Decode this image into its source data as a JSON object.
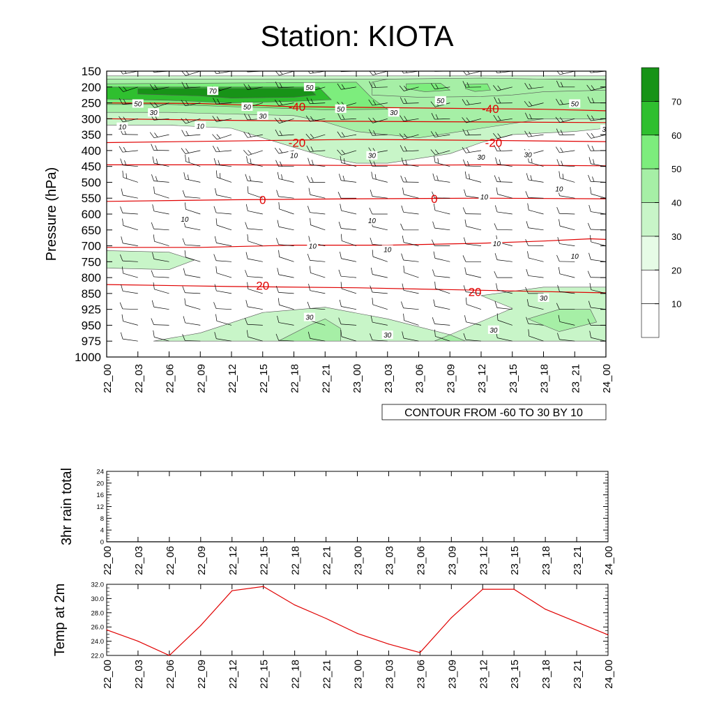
{
  "title": "Station: KIOTA",
  "time_labels": [
    "22_00",
    "22_03",
    "22_06",
    "22_09",
    "22_12",
    "22_15",
    "22_18",
    "22_21",
    "23_00",
    "23_03",
    "23_06",
    "23_09",
    "23_12",
    "23_15",
    "23_18",
    "23_21",
    "24_00"
  ],
  "chart_data": [
    {
      "type": "heatmap",
      "name": "time-height",
      "ylabel": "Pressure (hPa)",
      "y_ticks": [
        150,
        200,
        250,
        300,
        350,
        400,
        450,
        500,
        550,
        600,
        650,
        700,
        750,
        800,
        850,
        925,
        950,
        975,
        1000
      ],
      "note": "CONTOUR FROM -60 TO 30 BY 10",
      "colorbar": {
        "levels": [
          10,
          20,
          30,
          40,
          50,
          60,
          70
        ],
        "colors": [
          "#ffffff",
          "#ffffff",
          "#e6fbe6",
          "#c8f5c8",
          "#a6efa6",
          "#7ded7d",
          "#2fbf2f",
          "#179317"
        ]
      },
      "wind_speed_labels": [
        {
          "t": 3.4,
          "p": 212,
          "text": "70"
        },
        {
          "t": 6.5,
          "p": 200,
          "text": "50"
        },
        {
          "t": 1.0,
          "p": 252,
          "text": "50"
        },
        {
          "t": 4.5,
          "p": 262,
          "text": "50"
        },
        {
          "t": 7.5,
          "p": 268,
          "text": "50"
        },
        {
          "t": 1.5,
          "p": 280,
          "text": "30"
        },
        {
          "t": 5.0,
          "p": 290,
          "text": "30"
        },
        {
          "t": 9.2,
          "p": 280,
          "text": "30"
        },
        {
          "t": 10.7,
          "p": 242,
          "text": "50"
        },
        {
          "t": 15.0,
          "p": 252,
          "text": "50"
        },
        {
          "t": 16.0,
          "p": 332,
          "text": "30"
        },
        {
          "t": 0.5,
          "p": 325,
          "text": "10"
        },
        {
          "t": 3.0,
          "p": 322,
          "text": "10"
        },
        {
          "t": 6.0,
          "p": 415,
          "text": "10"
        },
        {
          "t": 8.5,
          "p": 415,
          "text": "30"
        },
        {
          "t": 12.0,
          "p": 420,
          "text": "30"
        },
        {
          "t": 13.5,
          "p": 412,
          "text": "30"
        },
        {
          "t": 14.5,
          "p": 520,
          "text": "10"
        },
        {
          "t": 12.1,
          "p": 545,
          "text": "10"
        },
        {
          "t": 2.5,
          "p": 615,
          "text": "10"
        },
        {
          "t": 8.5,
          "p": 620,
          "text": "10"
        },
        {
          "t": 6.6,
          "p": 700,
          "text": "10"
        },
        {
          "t": 9.0,
          "p": 711,
          "text": "10"
        },
        {
          "t": 12.5,
          "p": 692,
          "text": "10"
        },
        {
          "t": 15.0,
          "p": 732,
          "text": "10"
        },
        {
          "t": 6.5,
          "p": 937,
          "text": "30"
        },
        {
          "t": 9.0,
          "p": 965,
          "text": "30"
        },
        {
          "t": 12.4,
          "p": 957,
          "text": "30"
        },
        {
          "t": 14.0,
          "p": 870,
          "text": "30"
        }
      ],
      "temperature_contours": [
        {
          "label": "-40",
          "points": [
            [
              0,
              250
            ],
            [
              3,
              252
            ],
            [
              6,
              262
            ],
            [
              9,
              265
            ],
            [
              12,
              268
            ],
            [
              14,
              270
            ],
            [
              16,
              275
            ]
          ]
        },
        {
          "label": "",
          "points": [
            [
              0,
              300
            ],
            [
              4,
              305
            ],
            [
              8,
              308
            ],
            [
              12,
              310
            ],
            [
              16,
              312
            ]
          ]
        },
        {
          "label": "-20",
          "points": [
            [
              0,
              375
            ],
            [
              4,
              370
            ],
            [
              8,
              365
            ],
            [
              12,
              368
            ],
            [
              16,
              372
            ]
          ]
        },
        {
          "label": "",
          "points": [
            [
              0,
              445
            ],
            [
              4,
              445
            ],
            [
              8,
              447
            ],
            [
              12,
              445
            ],
            [
              16,
              448
            ]
          ]
        },
        {
          "label": "0",
          "points": [
            [
              0,
              560
            ],
            [
              4,
              555
            ],
            [
              8,
              552
            ],
            [
              12,
              550
            ],
            [
              16,
              552
            ]
          ]
        },
        {
          "label": "",
          "points": [
            [
              0,
              705
            ],
            [
              3,
              705
            ],
            [
              6,
              698
            ],
            [
              9,
              698
            ],
            [
              12,
              692
            ],
            [
              14,
              685
            ],
            [
              15.5,
              678
            ],
            [
              16,
              680
            ]
          ]
        },
        {
          "label": "20",
          "points": [
            [
              0,
              822
            ],
            [
              4,
              828
            ],
            [
              8,
              832
            ],
            [
              12,
              840
            ],
            [
              16,
              848
            ]
          ]
        }
      ],
      "temperature_contour_labels": [
        {
          "t": 6.1,
          "p": 262,
          "text": "-40"
        },
        {
          "t": 12.3,
          "p": 268,
          "text": "-40"
        },
        {
          "t": 6.1,
          "p": 375,
          "text": "-20"
        },
        {
          "t": 12.4,
          "p": 375,
          "text": "-20"
        },
        {
          "t": 5.0,
          "p": 555,
          "text": "0"
        },
        {
          "t": 10.5,
          "p": 552,
          "text": "0"
        },
        {
          "t": 5.0,
          "p": 825,
          "text": "20"
        },
        {
          "t": 11.8,
          "p": 845,
          "text": "20"
        }
      ],
      "shaded_regions": [
        {
          "level": 30,
          "points": [
            [
              0,
              165
            ],
            [
              16,
              165
            ],
            [
              16,
              330
            ],
            [
              15,
              340
            ],
            [
              13,
              350
            ],
            [
              12,
              375
            ],
            [
              11,
              410
            ],
            [
              9,
              440
            ],
            [
              8,
              440
            ],
            [
              7,
              420
            ],
            [
              6,
              390
            ],
            [
              5,
              360
            ],
            [
              4,
              330
            ],
            [
              2,
              320
            ],
            [
              0,
              320
            ]
          ]
        },
        {
          "level": 40,
          "points": [
            [
              0,
              175
            ],
            [
              16,
              175
            ],
            [
              16,
              300
            ],
            [
              14,
              300
            ],
            [
              12,
              330
            ],
            [
              10,
              360
            ],
            [
              8,
              340
            ],
            [
              7,
              310
            ],
            [
              6,
              290
            ],
            [
              4,
              285
            ],
            [
              2,
              280
            ],
            [
              0,
              280
            ]
          ]
        },
        {
          "level": 50,
          "points": [
            [
              0,
              190
            ],
            [
              8,
              185
            ],
            [
              8.5,
              235
            ],
            [
              9,
              270
            ],
            [
              7,
              272
            ],
            [
              6,
              268
            ],
            [
              4,
              262
            ],
            [
              2,
              255
            ],
            [
              0,
              255
            ]
          ]
        },
        {
          "level": 60,
          "points": [
            [
              0,
              200
            ],
            [
              6.8,
              200
            ],
            [
              7.2,
              240
            ],
            [
              6,
              245
            ],
            [
              4,
              250
            ],
            [
              2,
              242
            ],
            [
              0,
              238
            ]
          ]
        },
        {
          "level": 70,
          "points": [
            [
              1,
              205
            ],
            [
              6.5,
              205
            ],
            [
              6.7,
              225
            ],
            [
              6,
              232
            ],
            [
              4,
              235
            ],
            [
              3,
              228
            ],
            [
              1,
              222
            ]
          ]
        },
        {
          "level": 40,
          "points": [
            [
              8.5,
              185
            ],
            [
              9,
              175
            ],
            [
              12,
              172
            ],
            [
              16,
              178
            ],
            [
              16,
              210
            ],
            [
              14,
              215
            ],
            [
              13,
              225
            ],
            [
              12,
              230
            ],
            [
              10,
              232
            ],
            [
              8.5,
              225
            ]
          ]
        },
        {
          "level": 50,
          "points": [
            [
              9.6,
              190
            ],
            [
              10.7,
              188
            ],
            [
              11,
              210
            ],
            [
              10.2,
              215
            ],
            [
              9.6,
              205
            ]
          ]
        },
        {
          "level": 50,
          "points": [
            [
              11.5,
              192
            ],
            [
              12.2,
              190
            ],
            [
              12.3,
              210
            ],
            [
              11.8,
              214
            ],
            [
              11.5,
              205
            ]
          ]
        },
        {
          "level": 30,
          "points": [
            [
              0,
              715
            ],
            [
              2,
              720
            ],
            [
              2.8,
              745
            ],
            [
              2,
              775
            ],
            [
              0,
              770
            ]
          ]
        },
        {
          "level": 30,
          "points": [
            [
              1.5,
              975
            ],
            [
              3,
              962
            ],
            [
              5,
              930
            ],
            [
              7,
              915
            ],
            [
              9,
              940
            ],
            [
              11,
              965
            ],
            [
              13,
              920
            ],
            [
              12,
              860
            ],
            [
              14,
              830
            ],
            [
              16,
              830
            ],
            [
              16,
              975
            ]
          ]
        },
        {
          "level": 40,
          "points": [
            [
              5.5,
              975
            ],
            [
              6.5,
              950
            ],
            [
              7,
              940
            ],
            [
              7.5,
              955
            ],
            [
              7.5,
              975
            ]
          ]
        },
        {
          "level": 40,
          "points": [
            [
              13.5,
              940
            ],
            [
              14.5,
              925
            ],
            [
              15.5,
              925
            ],
            [
              15.7,
              945
            ],
            [
              14.5,
              960
            ]
          ]
        },
        {
          "level": 40,
          "points": [
            [
              10.5,
              975
            ],
            [
              11,
              965
            ],
            [
              11.5,
              975
            ]
          ]
        }
      ]
    },
    {
      "type": "line",
      "name": "rain",
      "ylabel": "3hr rain total",
      "ylim": [
        0,
        24
      ],
      "y_ticks": [
        0,
        4,
        8,
        12,
        16,
        20,
        24
      ],
      "values": [
        0,
        0,
        0,
        0,
        0,
        0,
        0,
        0,
        0,
        0,
        0,
        0,
        0,
        0,
        0,
        0,
        0
      ]
    },
    {
      "type": "line",
      "name": "temperature",
      "ylabel": "Temp at 2m",
      "ylim": [
        22.0,
        32.0
      ],
      "y_ticks": [
        "22.0",
        "24.0",
        "26.0",
        "28.0",
        "30.0",
        "32.0"
      ],
      "values": [
        25.6,
        24.0,
        22.0,
        26.2,
        31.1,
        31.7,
        29.1,
        27.2,
        25.1,
        23.6,
        22.4,
        27.3,
        31.3,
        31.3,
        28.5,
        26.7,
        24.9
      ],
      "color": "#e00000"
    }
  ]
}
